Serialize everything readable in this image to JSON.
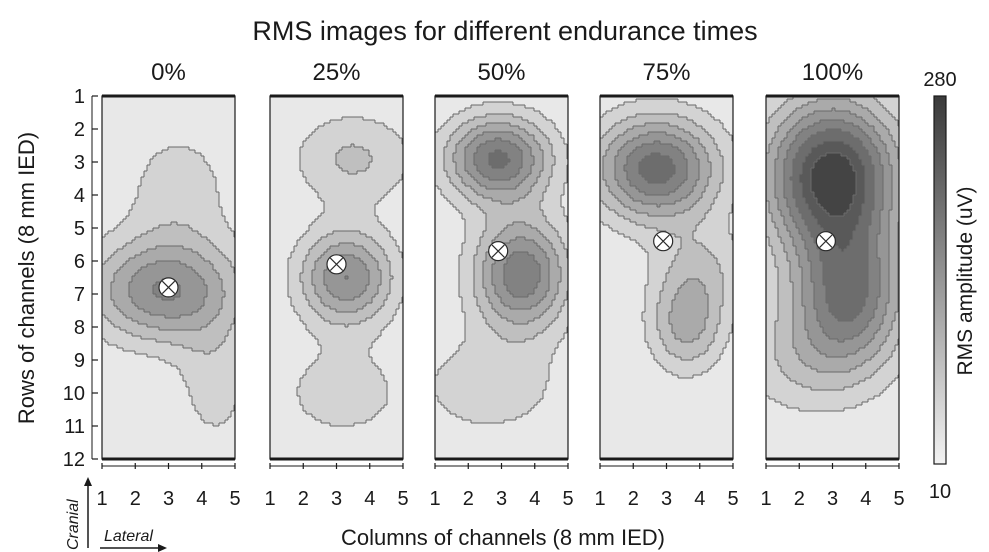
{
  "chart_data": {
    "type": "heatmap",
    "title": "RMS images for different endurance times",
    "xlabel": "Columns of channels (8 mm IED)",
    "ylabel": "Rows of channels (8 mm IED)",
    "colorbar_label": "RMS amplitude (uV)",
    "colorbar_range": [
      10,
      280
    ],
    "colorbar_max_label": "280",
    "colorbar_min_label": "10",
    "colormap": [
      "#f2f2f2",
      "#3a3a3a"
    ],
    "x_ticks": [
      "1",
      "2",
      "3",
      "4",
      "5"
    ],
    "y_ticks": [
      "1",
      "2",
      "3",
      "4",
      "5",
      "6",
      "7",
      "8",
      "9",
      "10",
      "11",
      "12"
    ],
    "xlim": [
      1,
      5
    ],
    "ylim": [
      1,
      12
    ],
    "orientation_cranial": "Cranial",
    "orientation_lateral": "Lateral",
    "panels": [
      {
        "label": "0%",
        "centroid": [
          3.0,
          6.8
        ],
        "blobs": [
          {
            "x": 2.9,
            "y": 6.9,
            "amp": 150,
            "sx": 1.6,
            "sy": 1.1
          },
          {
            "x": 3.3,
            "y": 3.8,
            "amp": 45,
            "sx": 1.2,
            "sy": 1.4
          },
          {
            "x": 4.4,
            "y": 9.7,
            "amp": 45,
            "sx": 0.8,
            "sy": 1.4
          }
        ]
      },
      {
        "label": "25%",
        "centroid": [
          3.0,
          6.1
        ],
        "blobs": [
          {
            "x": 3.3,
            "y": 6.5,
            "amp": 150,
            "sx": 1.0,
            "sy": 1.0
          },
          {
            "x": 3.5,
            "y": 2.9,
            "amp": 65,
            "sx": 1.3,
            "sy": 1.0
          },
          {
            "x": 3.2,
            "y": 10.0,
            "amp": 45,
            "sx": 1.5,
            "sy": 1.1
          }
        ]
      },
      {
        "label": "50%",
        "centroid": [
          2.9,
          5.7
        ],
        "blobs": [
          {
            "x": 2.9,
            "y": 2.9,
            "amp": 185,
            "sx": 1.1,
            "sy": 0.9
          },
          {
            "x": 3.6,
            "y": 6.4,
            "amp": 175,
            "sx": 1.0,
            "sy": 1.2
          },
          {
            "x": 2.6,
            "y": 9.8,
            "amp": 50,
            "sx": 1.6,
            "sy": 1.1
          }
        ]
      },
      {
        "label": "75%",
        "centroid": [
          2.9,
          5.4
        ],
        "blobs": [
          {
            "x": 2.7,
            "y": 3.2,
            "amp": 195,
            "sx": 1.3,
            "sy": 1.1
          },
          {
            "x": 3.6,
            "y": 8.0,
            "amp": 95,
            "sx": 0.8,
            "sy": 1.0
          },
          {
            "x": 4.0,
            "y": 6.3,
            "amp": 60,
            "sx": 1.0,
            "sy": 1.0
          }
        ]
      },
      {
        "label": "100%",
        "centroid": [
          2.8,
          5.4
        ],
        "blobs": [
          {
            "x": 3.0,
            "y": 3.4,
            "amp": 260,
            "sx": 1.4,
            "sy": 1.6
          },
          {
            "x": 3.5,
            "y": 7.0,
            "amp": 175,
            "sx": 1.2,
            "sy": 1.5
          },
          {
            "x": 2.2,
            "y": 9.0,
            "amp": 55,
            "sx": 1.5,
            "sy": 1.2
          }
        ]
      }
    ]
  }
}
